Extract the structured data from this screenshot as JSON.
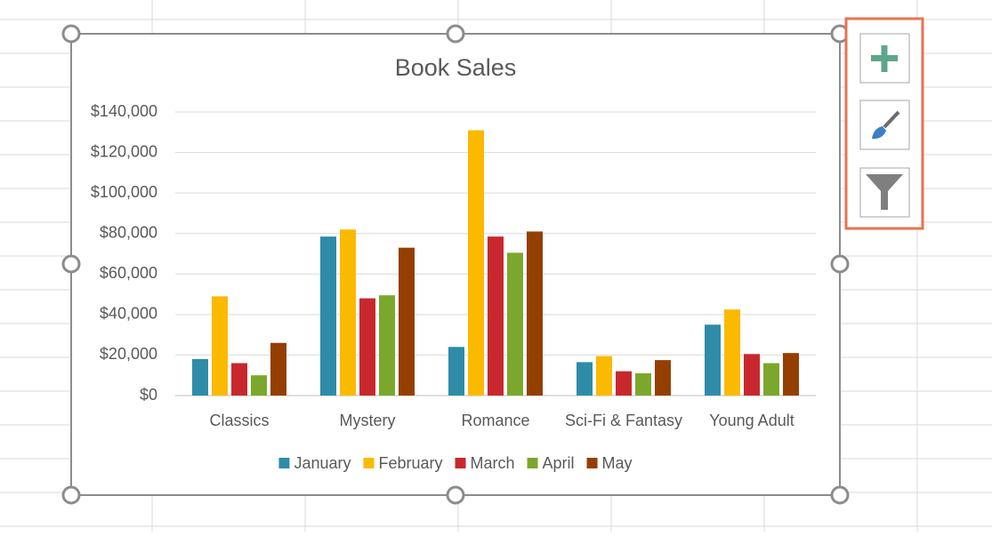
{
  "chart_data": {
    "type": "bar",
    "title": "Book Sales",
    "categories": [
      "Classics",
      "Mystery",
      "Romance",
      "Sci-Fi & Fantasy",
      "Young Adult"
    ],
    "series": [
      {
        "name": "January",
        "color": "#2e8ca8",
        "values": [
          18000,
          78500,
          24000,
          16500,
          35000
        ]
      },
      {
        "name": "February",
        "color": "#fbb900",
        "values": [
          49000,
          82000,
          131000,
          19500,
          42500
        ]
      },
      {
        "name": "March",
        "color": "#c8282d",
        "values": [
          16000,
          48000,
          78500,
          12000,
          20500
        ]
      },
      {
        "name": "April",
        "color": "#7ba82c",
        "values": [
          10000,
          49500,
          70500,
          11000,
          16000
        ]
      },
      {
        "name": "May",
        "color": "#943f00",
        "values": [
          26000,
          73000,
          81000,
          17500,
          21000
        ]
      }
    ],
    "ylim": [
      0,
      140000
    ],
    "yticks": [
      {
        "value": 0,
        "label": "$0"
      },
      {
        "value": 20000,
        "label": "$20,000"
      },
      {
        "value": 40000,
        "label": "$40,000"
      },
      {
        "value": 60000,
        "label": "$60,000"
      },
      {
        "value": 80000,
        "label": "$80,000"
      },
      {
        "value": 100000,
        "label": "$100,000"
      },
      {
        "value": 120000,
        "label": "$120,000"
      },
      {
        "value": 140000,
        "label": "$140,000"
      }
    ],
    "grid": true,
    "legend": "bottom"
  }
}
